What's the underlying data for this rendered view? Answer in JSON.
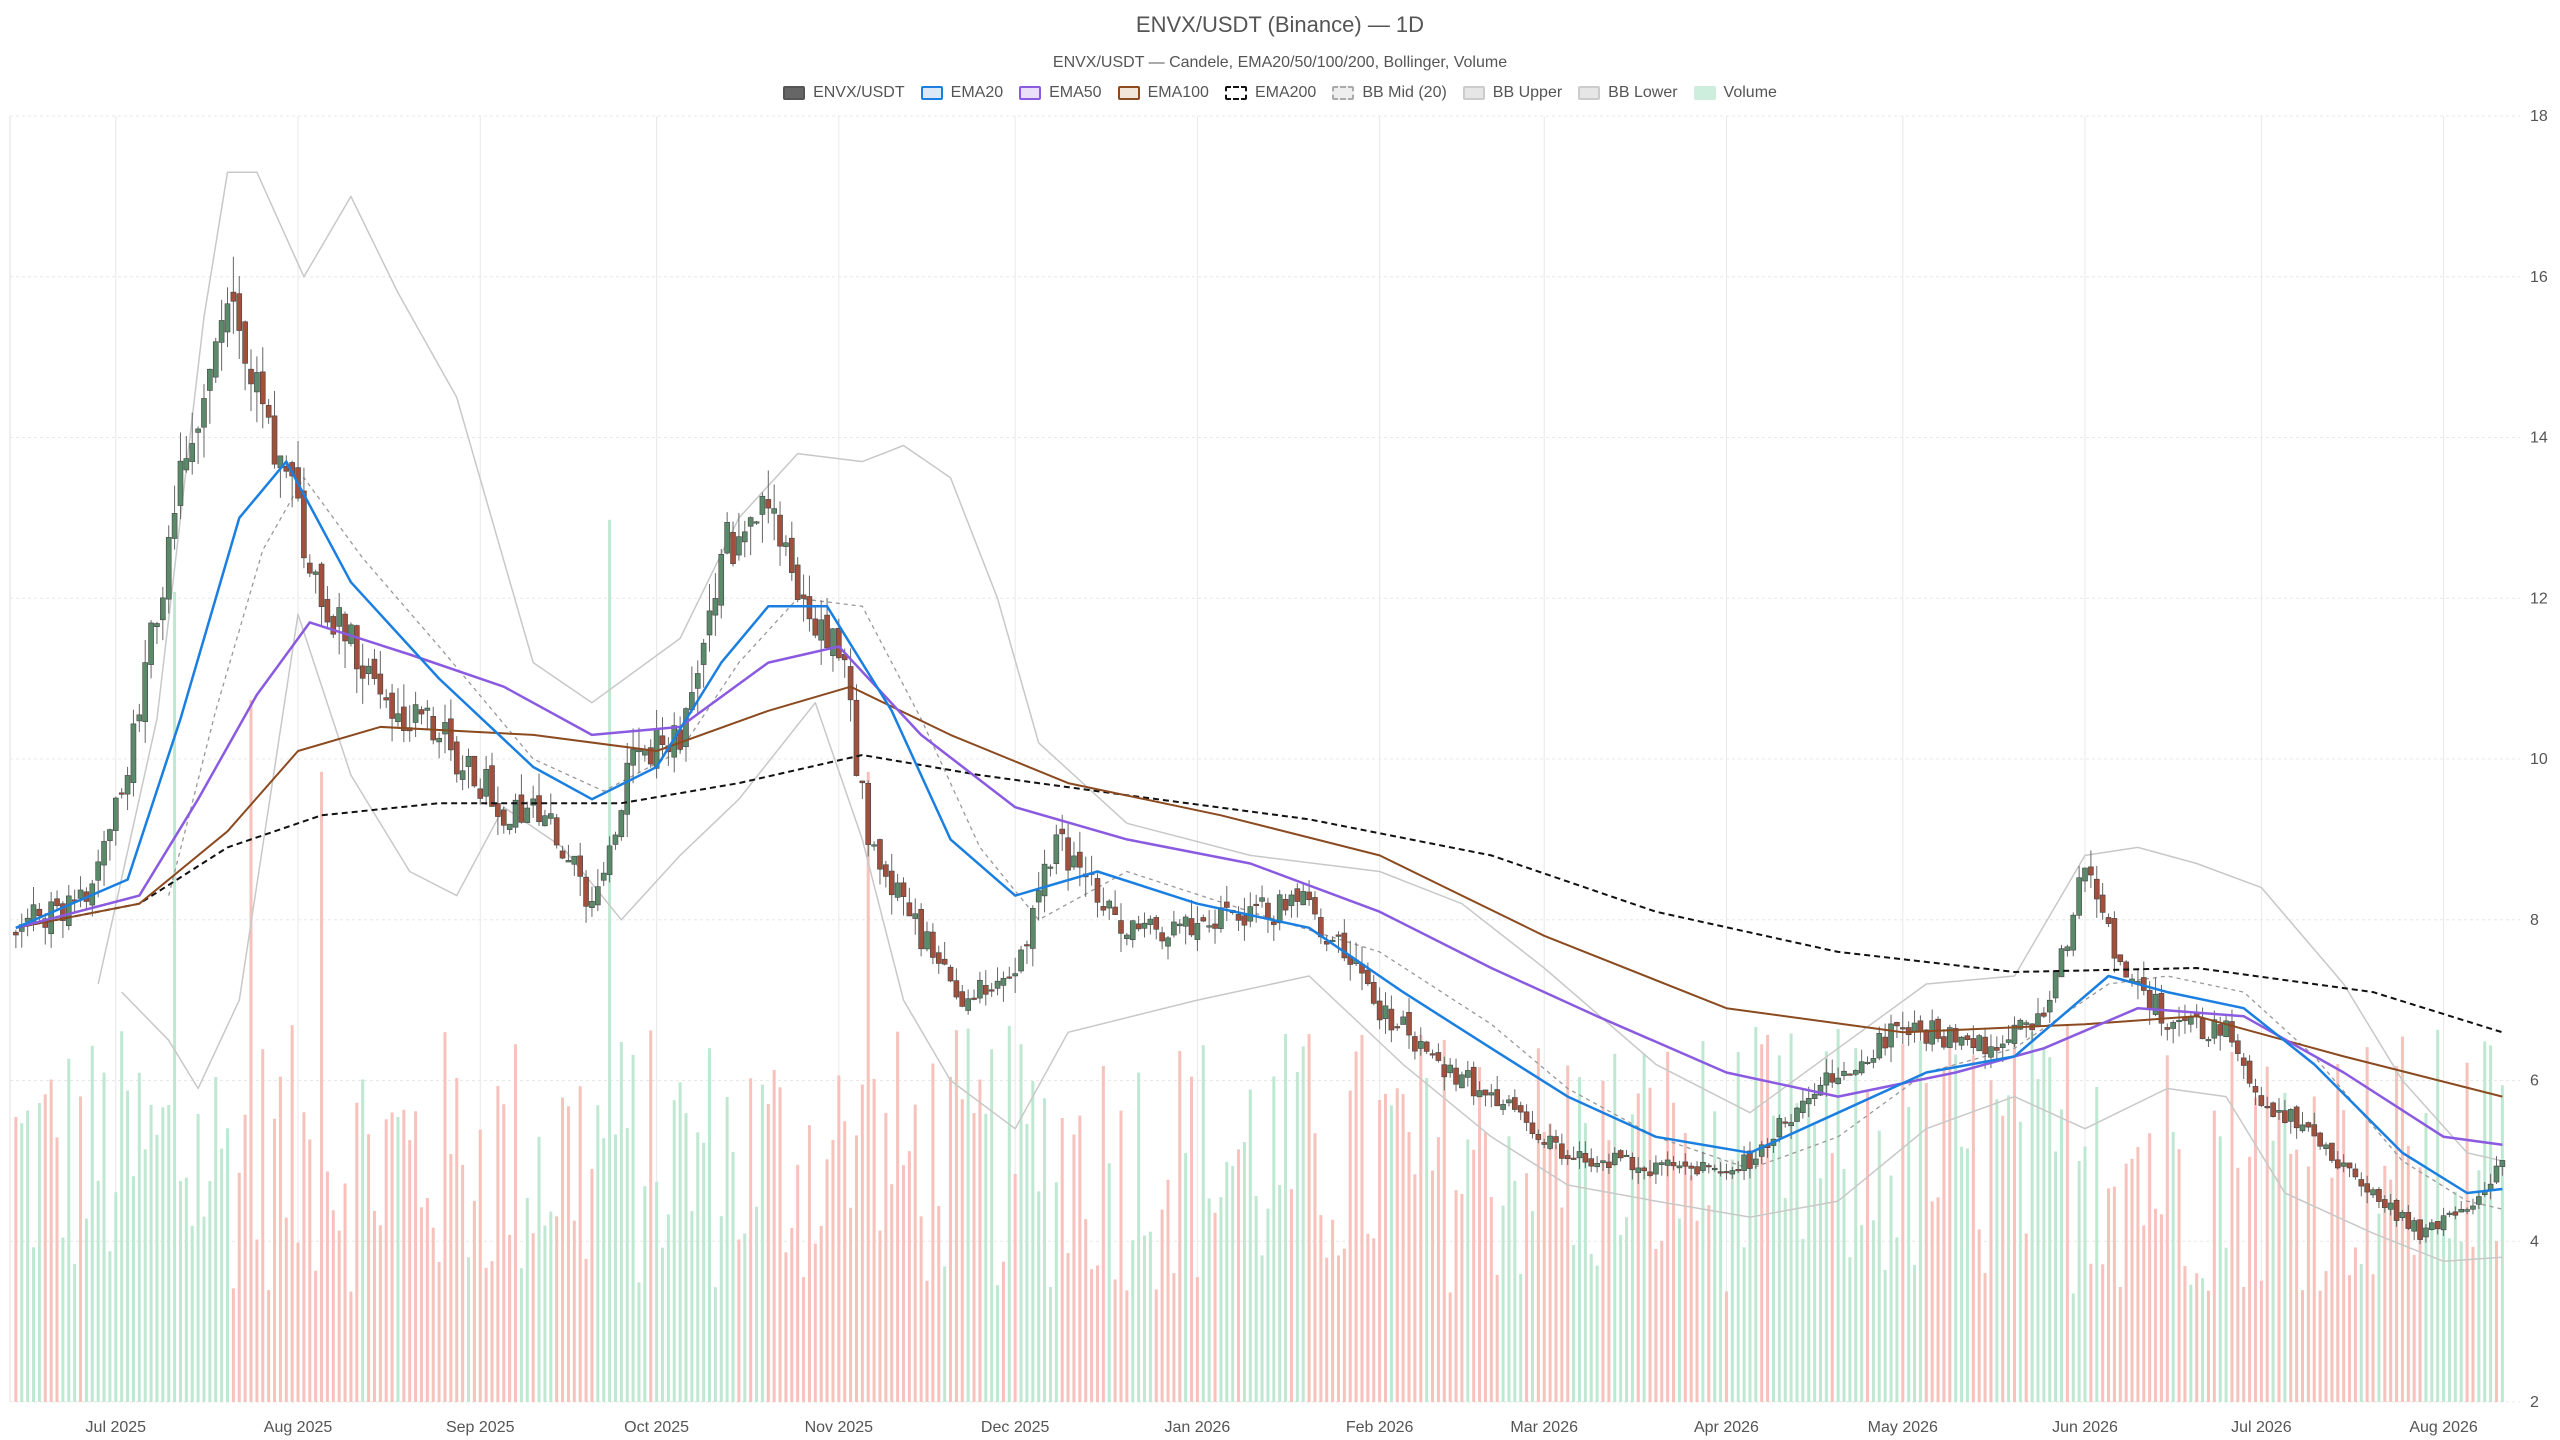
{
  "chart_data": {
    "type": "candlestick",
    "title": "ENVX/USDT (Binance) — 1D",
    "subtitle": "ENVX/USDT — Candele, EMA20/50/100/200, Bollinger, Volume",
    "legend": [
      {
        "label": "ENVX/USDT",
        "fill": "#666666",
        "stroke": "#555555",
        "dash": false
      },
      {
        "label": "EMA20",
        "fill": "#dbe9f7",
        "stroke": "#1a7fe0",
        "dash": false
      },
      {
        "label": "EMA50",
        "fill": "#eadff7",
        "stroke": "#8a5ae0",
        "dash": false
      },
      {
        "label": "EMA100",
        "fill": "#f1e4d8",
        "stroke": "#8b4a20",
        "dash": false
      },
      {
        "label": "EMA200",
        "fill": "#ffffff",
        "stroke": "#111111",
        "dash": true
      },
      {
        "label": "BB Mid (20)",
        "fill": "#eeeeee",
        "stroke": "#aaaaaa",
        "dash": true
      },
      {
        "label": "BB Upper",
        "fill": "#e6e6e6",
        "stroke": "#cccccc",
        "dash": false
      },
      {
        "label": "BB Lower",
        "fill": "#e6e6e6",
        "stroke": "#cccccc",
        "dash": false
      },
      {
        "label": "Volume",
        "fill": "#cdeedd",
        "stroke": "#cdeedd",
        "dash": false
      }
    ],
    "x_ticks": [
      "Jul 2025",
      "Aug 2025",
      "Sep 2025",
      "Oct 2025",
      "Nov 2025",
      "Dec 2025",
      "Jan 2026",
      "Feb 2026",
      "Mar 2026",
      "Apr 2026",
      "May 2026",
      "Jun 2026",
      "Jul 2026",
      "Aug 2026"
    ],
    "y_ticks": [
      2,
      4,
      6,
      8,
      10,
      12,
      14,
      16,
      18
    ],
    "ylim": [
      2,
      18
    ],
    "y_axis_side": "right",
    "grid": true,
    "colors": {
      "up": "#5a8a6a",
      "down": "#a0503c",
      "vol_up": "#bfe8d2",
      "vol_down": "#f6c2bb",
      "grid": "#e8e8e8"
    },
    "price_path": [
      [
        "2025-06-14",
        7.9
      ],
      [
        "2025-06-26",
        8.3
      ],
      [
        "2025-07-03",
        9.8
      ],
      [
        "2025-07-12",
        13.5
      ],
      [
        "2025-07-20",
        15.5
      ],
      [
        "2025-07-28",
        14.0
      ],
      [
        "2025-08-05",
        12.0
      ],
      [
        "2025-08-15",
        10.8
      ],
      [
        "2025-08-25",
        10.3
      ],
      [
        "2025-09-05",
        9.4
      ],
      [
        "2025-09-13",
        9.2
      ],
      [
        "2025-09-20",
        8.2
      ],
      [
        "2025-09-27",
        10.0
      ],
      [
        "2025-10-05",
        10.3
      ],
      [
        "2025-10-12",
        12.6
      ],
      [
        "2025-10-20",
        13.0
      ],
      [
        "2025-10-27",
        11.9
      ],
      [
        "2025-11-01",
        11.5
      ],
      [
        "2025-11-06",
        9.0
      ],
      [
        "2025-11-15",
        7.8
      ],
      [
        "2025-11-22",
        7.0
      ],
      [
        "2025-12-01",
        7.3
      ],
      [
        "2025-12-08",
        9.0
      ],
      [
        "2025-12-20",
        7.8
      ],
      [
        "2026-01-05",
        8.0
      ],
      [
        "2026-01-20",
        8.2
      ],
      [
        "2026-02-01",
        6.9
      ],
      [
        "2026-02-10",
        6.3
      ],
      [
        "2026-02-20",
        5.8
      ],
      [
        "2026-03-05",
        5.1
      ],
      [
        "2026-03-20",
        4.9
      ],
      [
        "2026-04-05",
        5.0
      ],
      [
        "2026-04-15",
        5.8
      ],
      [
        "2026-05-01",
        6.7
      ],
      [
        "2026-05-15",
        6.4
      ],
      [
        "2026-05-25",
        6.8
      ],
      [
        "2026-06-01",
        8.6
      ],
      [
        "2026-06-08",
        7.2
      ],
      [
        "2026-06-15",
        6.8
      ],
      [
        "2026-06-25",
        6.6
      ],
      [
        "2026-07-01",
        5.8
      ],
      [
        "2026-07-10",
        5.3
      ],
      [
        "2026-07-20",
        4.6
      ],
      [
        "2026-07-28",
        4.1
      ],
      [
        "2026-08-04",
        4.4
      ],
      [
        "2026-08-11",
        4.9
      ]
    ],
    "ema20": [
      [
        "2025-06-14",
        7.9
      ],
      [
        "2025-07-03",
        8.5
      ],
      [
        "2025-07-12",
        10.5
      ],
      [
        "2025-07-22",
        13.0
      ],
      [
        "2025-07-30",
        13.7
      ],
      [
        "2025-08-10",
        12.2
      ],
      [
        "2025-08-25",
        11.0
      ],
      [
        "2025-09-10",
        9.9
      ],
      [
        "2025-09-20",
        9.5
      ],
      [
        "2025-10-01",
        9.9
      ],
      [
        "2025-10-12",
        11.2
      ],
      [
        "2025-10-20",
        11.9
      ],
      [
        "2025-10-30",
        11.9
      ],
      [
        "2025-11-10",
        10.6
      ],
      [
        "2025-11-20",
        9.0
      ],
      [
        "2025-12-01",
        8.3
      ],
      [
        "2025-12-15",
        8.6
      ],
      [
        "2026-01-01",
        8.2
      ],
      [
        "2026-01-20",
        7.9
      ],
      [
        "2026-02-05",
        7.1
      ],
      [
        "2026-02-20",
        6.4
      ],
      [
        "2026-03-05",
        5.8
      ],
      [
        "2026-03-20",
        5.3
      ],
      [
        "2026-04-05",
        5.1
      ],
      [
        "2026-04-20",
        5.6
      ],
      [
        "2026-05-05",
        6.1
      ],
      [
        "2026-05-20",
        6.3
      ],
      [
        "2026-06-05",
        7.3
      ],
      [
        "2026-06-15",
        7.1
      ],
      [
        "2026-06-28",
        6.9
      ],
      [
        "2026-07-10",
        6.2
      ],
      [
        "2026-07-25",
        5.1
      ],
      [
        "2026-08-05",
        4.6
      ],
      [
        "2026-08-11",
        4.65
      ]
    ],
    "ema50": [
      [
        "2025-06-14",
        7.9
      ],
      [
        "2025-07-05",
        8.3
      ],
      [
        "2025-07-15",
        9.5
      ],
      [
        "2025-07-25",
        10.8
      ],
      [
        "2025-08-03",
        11.7
      ],
      [
        "2025-08-20",
        11.3
      ],
      [
        "2025-09-05",
        10.9
      ],
      [
        "2025-09-20",
        10.3
      ],
      [
        "2025-10-05",
        10.4
      ],
      [
        "2025-10-20",
        11.2
      ],
      [
        "2025-11-01",
        11.4
      ],
      [
        "2025-11-15",
        10.3
      ],
      [
        "2025-12-01",
        9.4
      ],
      [
        "2025-12-20",
        9.0
      ],
      [
        "2026-01-10",
        8.7
      ],
      [
        "2026-02-01",
        8.1
      ],
      [
        "2026-02-20",
        7.4
      ],
      [
        "2026-03-10",
        6.8
      ],
      [
        "2026-04-01",
        6.1
      ],
      [
        "2026-04-20",
        5.8
      ],
      [
        "2026-05-10",
        6.1
      ],
      [
        "2026-05-25",
        6.4
      ],
      [
        "2026-06-10",
        6.9
      ],
      [
        "2026-06-28",
        6.8
      ],
      [
        "2026-07-15",
        6.1
      ],
      [
        "2026-08-01",
        5.3
      ],
      [
        "2026-08-11",
        5.2
      ]
    ],
    "ema100": [
      [
        "2025-06-14",
        7.9
      ],
      [
        "2025-07-05",
        8.2
      ],
      [
        "2025-07-20",
        9.1
      ],
      [
        "2025-08-01",
        10.1
      ],
      [
        "2025-08-15",
        10.4
      ],
      [
        "2025-09-10",
        10.3
      ],
      [
        "2025-10-01",
        10.1
      ],
      [
        "2025-10-20",
        10.6
      ],
      [
        "2025-11-03",
        10.9
      ],
      [
        "2025-11-20",
        10.3
      ],
      [
        "2025-12-10",
        9.7
      ],
      [
        "2026-01-05",
        9.3
      ],
      [
        "2026-02-01",
        8.8
      ],
      [
        "2026-03-01",
        7.8
      ],
      [
        "2026-04-01",
        6.9
      ],
      [
        "2026-05-01",
        6.6
      ],
      [
        "2026-06-01",
        6.7
      ],
      [
        "2026-06-20",
        6.8
      ],
      [
        "2026-07-15",
        6.3
      ],
      [
        "2026-08-11",
        5.8
      ]
    ],
    "ema200": [
      [
        "2025-06-14",
        7.9
      ],
      [
        "2025-07-05",
        8.2
      ],
      [
        "2025-07-20",
        8.9
      ],
      [
        "2025-08-05",
        9.3
      ],
      [
        "2025-08-25",
        9.45
      ],
      [
        "2025-09-25",
        9.45
      ],
      [
        "2025-10-15",
        9.7
      ],
      [
        "2025-11-05",
        10.05
      ],
      [
        "2025-11-25",
        9.8
      ],
      [
        "2025-12-20",
        9.55
      ],
      [
        "2026-01-20",
        9.25
      ],
      [
        "2026-02-20",
        8.8
      ],
      [
        "2026-03-20",
        8.1
      ],
      [
        "2026-04-20",
        7.6
      ],
      [
        "2026-05-20",
        7.35
      ],
      [
        "2026-06-20",
        7.4
      ],
      [
        "2026-07-20",
        7.1
      ],
      [
        "2026-08-11",
        6.6
      ]
    ],
    "bb_upper": [
      [
        "2025-06-28",
        7.2
      ],
      [
        "2025-07-08",
        10.5
      ],
      [
        "2025-07-16",
        15.5
      ],
      [
        "2025-07-20",
        17.3
      ],
      [
        "2025-07-25",
        17.3
      ],
      [
        "2025-08-02",
        16.0
      ],
      [
        "2025-08-10",
        17.0
      ],
      [
        "2025-08-18",
        15.8
      ],
      [
        "2025-08-28",
        14.5
      ],
      [
        "2025-09-10",
        11.2
      ],
      [
        "2025-09-20",
        10.7
      ],
      [
        "2025-10-05",
        11.5
      ],
      [
        "2025-10-15",
        13.0
      ],
      [
        "2025-10-25",
        13.8
      ],
      [
        "2025-11-05",
        13.7
      ],
      [
        "2025-11-12",
        13.9
      ],
      [
        "2025-11-20",
        13.5
      ],
      [
        "2025-11-28",
        12.0
      ],
      [
        "2025-12-05",
        10.2
      ],
      [
        "2025-12-20",
        9.2
      ],
      [
        "2026-01-10",
        8.8
      ],
      [
        "2026-02-01",
        8.6
      ],
      [
        "2026-02-15",
        8.2
      ],
      [
        "2026-03-01",
        7.4
      ],
      [
        "2026-03-20",
        6.2
      ],
      [
        "2026-04-05",
        5.6
      ],
      [
        "2026-04-20",
        6.4
      ],
      [
        "2026-05-05",
        7.2
      ],
      [
        "2026-05-20",
        7.3
      ],
      [
        "2026-06-01",
        8.8
      ],
      [
        "2026-06-10",
        8.9
      ],
      [
        "2026-06-20",
        8.7
      ],
      [
        "2026-07-01",
        8.4
      ],
      [
        "2026-07-15",
        7.2
      ],
      [
        "2026-07-25",
        6.0
      ],
      [
        "2026-08-05",
        5.1
      ],
      [
        "2026-08-11",
        5.0
      ]
    ],
    "bb_lower": [
      [
        "2025-07-02",
        7.1
      ],
      [
        "2025-07-10",
        6.5
      ],
      [
        "2025-07-15",
        5.9
      ],
      [
        "2025-07-22",
        7.0
      ],
      [
        "2025-08-01",
        11.8
      ],
      [
        "2025-08-10",
        9.8
      ],
      [
        "2025-08-20",
        8.6
      ],
      [
        "2025-08-28",
        8.3
      ],
      [
        "2025-09-05",
        9.4
      ],
      [
        "2025-09-15",
        8.9
      ],
      [
        "2025-09-25",
        8.0
      ],
      [
        "2025-10-05",
        8.8
      ],
      [
        "2025-10-15",
        9.5
      ],
      [
        "2025-10-28",
        10.7
      ],
      [
        "2025-11-05",
        9.0
      ],
      [
        "2025-11-12",
        7.0
      ],
      [
        "2025-11-20",
        6.0
      ],
      [
        "2025-12-01",
        5.4
      ],
      [
        "2025-12-10",
        6.6
      ],
      [
        "2026-01-01",
        7.0
      ],
      [
        "2026-01-20",
        7.3
      ],
      [
        "2026-02-05",
        6.2
      ],
      [
        "2026-02-20",
        5.3
      ],
      [
        "2026-03-05",
        4.7
      ],
      [
        "2026-03-20",
        4.5
      ],
      [
        "2026-04-05",
        4.3
      ],
      [
        "2026-04-20",
        4.5
      ],
      [
        "2026-05-05",
        5.4
      ],
      [
        "2026-05-20",
        5.8
      ],
      [
        "2026-06-01",
        5.4
      ],
      [
        "2026-06-15",
        5.9
      ],
      [
        "2026-06-25",
        5.8
      ],
      [
        "2026-07-05",
        4.6
      ],
      [
        "2026-07-20",
        4.1
      ],
      [
        "2026-08-01",
        3.75
      ],
      [
        "2026-08-11",
        3.8
      ]
    ],
    "bb_mid": [
      [
        "2025-07-10",
        8.3
      ],
      [
        "2025-07-18",
        10.6
      ],
      [
        "2025-07-26",
        12.6
      ],
      [
        "2025-08-02",
        13.5
      ],
      [
        "2025-08-12",
        12.5
      ],
      [
        "2025-08-25",
        11.4
      ],
      [
        "2025-09-10",
        10.0
      ],
      [
        "2025-09-22",
        9.6
      ],
      [
        "2025-10-05",
        10.1
      ],
      [
        "2025-10-15",
        11.2
      ],
      [
        "2025-10-25",
        12.0
      ],
      [
        "2025-11-05",
        11.9
      ],
      [
        "2025-11-15",
        10.5
      ],
      [
        "2025-11-25",
        8.9
      ],
      [
        "2025-12-05",
        8.0
      ],
      [
        "2025-12-20",
        8.6
      ],
      [
        "2026-01-10",
        8.1
      ],
      [
        "2026-02-01",
        7.6
      ],
      [
        "2026-02-20",
        6.7
      ],
      [
        "2026-03-05",
        5.9
      ],
      [
        "2026-03-20",
        5.3
      ],
      [
        "2026-04-05",
        4.9
      ],
      [
        "2026-04-20",
        5.3
      ],
      [
        "2026-05-05",
        6.1
      ],
      [
        "2026-05-20",
        6.4
      ],
      [
        "2026-06-05",
        7.2
      ],
      [
        "2026-06-15",
        7.3
      ],
      [
        "2026-06-28",
        7.1
      ],
      [
        "2026-07-10",
        6.3
      ],
      [
        "2026-07-25",
        5.0
      ],
      [
        "2026-08-05",
        4.5
      ],
      [
        "2026-08-11",
        4.4
      ]
    ],
    "volume_peaks": [
      {
        "date": "2025-07-11",
        "level": 0.9,
        "dir": "up"
      },
      {
        "date": "2025-07-24",
        "level": 0.78,
        "dir": "down"
      },
      {
        "date": "2025-08-05",
        "level": 0.7,
        "dir": "down"
      },
      {
        "date": "2025-09-23",
        "level": 0.98,
        "dir": "up"
      },
      {
        "date": "2025-11-06",
        "level": 0.7,
        "dir": "down"
      },
      {
        "date": "2026-05-29",
        "level": 0.42,
        "dir": "down"
      },
      {
        "date": "2026-06-03",
        "level": 0.35,
        "dir": "up"
      }
    ]
  }
}
